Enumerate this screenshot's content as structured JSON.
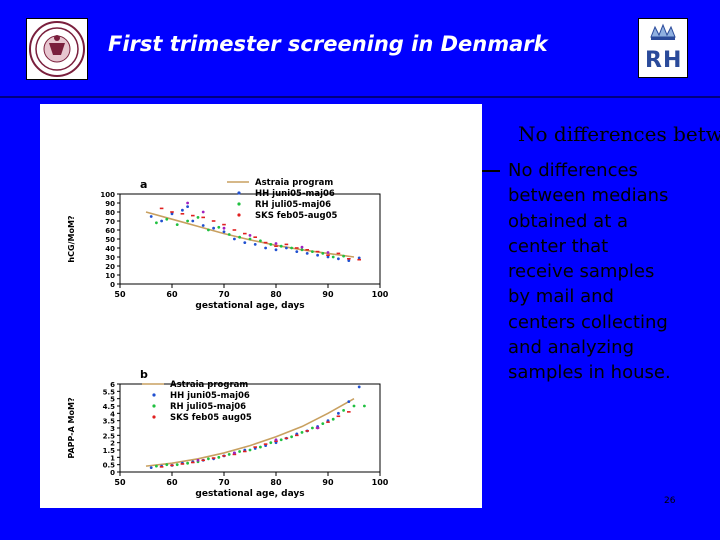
{
  "slide": {
    "title": "First trimester screening in Denmark",
    "overflow_heading": "No differences betwe",
    "body": "No differences between medians obtained at a center that receive samples by mail and centers collecting and analyzing samples in house.",
    "page_number": "26"
  },
  "colors": {
    "background": "#0000ff",
    "title_text": "#ffffff",
    "figure_background": "#ffffff",
    "astraia_line": "#c8a060",
    "hh_points": "#2050d0",
    "rh_points": "#20c040",
    "sks_points": "#e02020",
    "overlap_points": "#a020c0"
  },
  "icons": {
    "left_logo": "university-seal-icon",
    "right_logo": "rh-crown-logo-icon"
  },
  "chart_data": [
    {
      "type": "scatter",
      "panel_label": "a",
      "xlabel": "gestational age, days",
      "ylabel": "hCG/MoM?",
      "x_ticks": [
        "50",
        "60",
        "70",
        "80",
        "90",
        "100"
      ],
      "y_ticks": [
        "0",
        "10",
        "20",
        "30",
        "40",
        "50",
        "60",
        "70",
        "80",
        "90",
        "100"
      ],
      "xlim": [
        50,
        100
      ],
      "ylim": [
        0,
        100
      ],
      "legend": [
        "Astraia program",
        "HH juni05-maj06",
        "RH juli05-maj06",
        "SKS feb05-aug05"
      ],
      "legend_position": "top-center",
      "series": [
        {
          "name": "Astraia program",
          "kind": "line",
          "color_key": "astraia_line",
          "x": [
            55,
            60,
            65,
            70,
            75,
            80,
            85,
            90,
            95
          ],
          "y": [
            80,
            72,
            64,
            56,
            49,
            43,
            38,
            34,
            30
          ]
        },
        {
          "name": "HH juni05-maj06",
          "kind": "points",
          "color_key": "hh_points",
          "x": [
            56,
            58,
            60,
            62,
            63,
            64,
            66,
            68,
            70,
            72,
            74,
            76,
            78,
            80,
            82,
            84,
            86,
            88,
            90,
            92,
            94,
            96
          ],
          "y": [
            75,
            70,
            78,
            82,
            86,
            70,
            65,
            62,
            58,
            50,
            46,
            44,
            40,
            38,
            40,
            36,
            34,
            32,
            30,
            28,
            26,
            29
          ]
        },
        {
          "name": "RH juli05-maj06",
          "kind": "points",
          "color_key": "rh_points",
          "x": [
            57,
            59,
            61,
            63,
            65,
            67,
            69,
            71,
            73,
            75,
            77,
            79,
            81,
            83,
            85,
            87,
            89,
            91,
            93
          ],
          "y": [
            68,
            72,
            66,
            70,
            74,
            60,
            63,
            55,
            52,
            50,
            48,
            44,
            42,
            40,
            38,
            36,
            34,
            30,
            31
          ]
        },
        {
          "name": "SKS feb05-aug05",
          "kind": "points",
          "color_key": "sks_points",
          "x": [
            58,
            60,
            62,
            64,
            66,
            68,
            70,
            72,
            74,
            76,
            78,
            80,
            82,
            84,
            86,
            88,
            90,
            92,
            94,
            96
          ],
          "y": [
            84,
            80,
            78,
            76,
            74,
            70,
            66,
            60,
            56,
            52,
            46,
            42,
            44,
            40,
            38,
            36,
            32,
            34,
            28,
            27
          ]
        },
        {
          "name": "",
          "kind": "points",
          "color_key": "overlap_points",
          "x": [
            63,
            66,
            70,
            75,
            80,
            85,
            90
          ],
          "y": [
            90,
            80,
            62,
            54,
            45,
            41,
            35
          ]
        }
      ]
    },
    {
      "type": "scatter",
      "panel_label": "b",
      "xlabel": "gestational age, days",
      "ylabel": "PAPP-A MoM?",
      "x_ticks": [
        "50",
        "60",
        "70",
        "80",
        "90",
        "100"
      ],
      "y_ticks": [
        "0",
        "0.5",
        "1",
        "1.5",
        "2",
        "2.5",
        "3",
        "3.5",
        "4",
        "4.5",
        "5",
        "5.5",
        "6"
      ],
      "xlim": [
        50,
        100
      ],
      "ylim": [
        0,
        6
      ],
      "legend": [
        "Astraia program",
        "HH juni05-maj06",
        "RH juli05-maj06",
        "SKS feb05 aug05"
      ],
      "legend_position": "top-left",
      "series": [
        {
          "name": "Astraia program",
          "kind": "line",
          "color_key": "astraia_line",
          "x": [
            55,
            60,
            65,
            70,
            75,
            80,
            85,
            90,
            95
          ],
          "y": [
            0.4,
            0.6,
            0.9,
            1.3,
            1.8,
            2.4,
            3.1,
            4.0,
            5.0
          ]
        },
        {
          "name": "HH juni05-maj06",
          "kind": "points",
          "color_key": "hh_points",
          "x": [
            56,
            58,
            60,
            62,
            64,
            66,
            68,
            70,
            72,
            74,
            76,
            78,
            80,
            82,
            84,
            86,
            88,
            90,
            92,
            94,
            96
          ],
          "y": [
            0.3,
            0.4,
            0.45,
            0.6,
            0.7,
            0.8,
            0.9,
            1.1,
            1.3,
            1.5,
            1.6,
            1.8,
            2.0,
            2.3,
            2.6,
            2.8,
            3.1,
            3.5,
            4.0,
            4.8,
            5.8
          ]
        },
        {
          "name": "RH juli05-maj06",
          "kind": "points",
          "color_key": "rh_points",
          "x": [
            57,
            59,
            61,
            63,
            65,
            67,
            69,
            71,
            73,
            75,
            77,
            79,
            81,
            83,
            85,
            87,
            89,
            91,
            93,
            95,
            97
          ],
          "y": [
            0.4,
            0.5,
            0.5,
            0.6,
            0.7,
            0.9,
            1.0,
            1.2,
            1.4,
            1.5,
            1.7,
            2.0,
            2.2,
            2.4,
            2.7,
            3.0,
            3.3,
            3.6,
            4.2,
            4.5,
            4.5
          ]
        },
        {
          "name": "SKS feb05 aug05",
          "kind": "points",
          "color_key": "sks_points",
          "x": [
            58,
            60,
            62,
            64,
            66,
            68,
            70,
            72,
            74,
            76,
            78,
            80,
            82,
            84,
            86,
            88,
            90,
            92,
            94
          ],
          "y": [
            0.35,
            0.45,
            0.55,
            0.65,
            0.8,
            0.95,
            1.1,
            1.2,
            1.4,
            1.7,
            1.9,
            2.1,
            2.3,
            2.5,
            2.8,
            3.0,
            3.4,
            3.8,
            4.1
          ]
        },
        {
          "name": "",
          "kind": "points",
          "color_key": "overlap_points",
          "x": [
            65,
            72,
            80,
            88
          ],
          "y": [
            0.8,
            1.3,
            2.2,
            3.0
          ]
        }
      ]
    }
  ]
}
